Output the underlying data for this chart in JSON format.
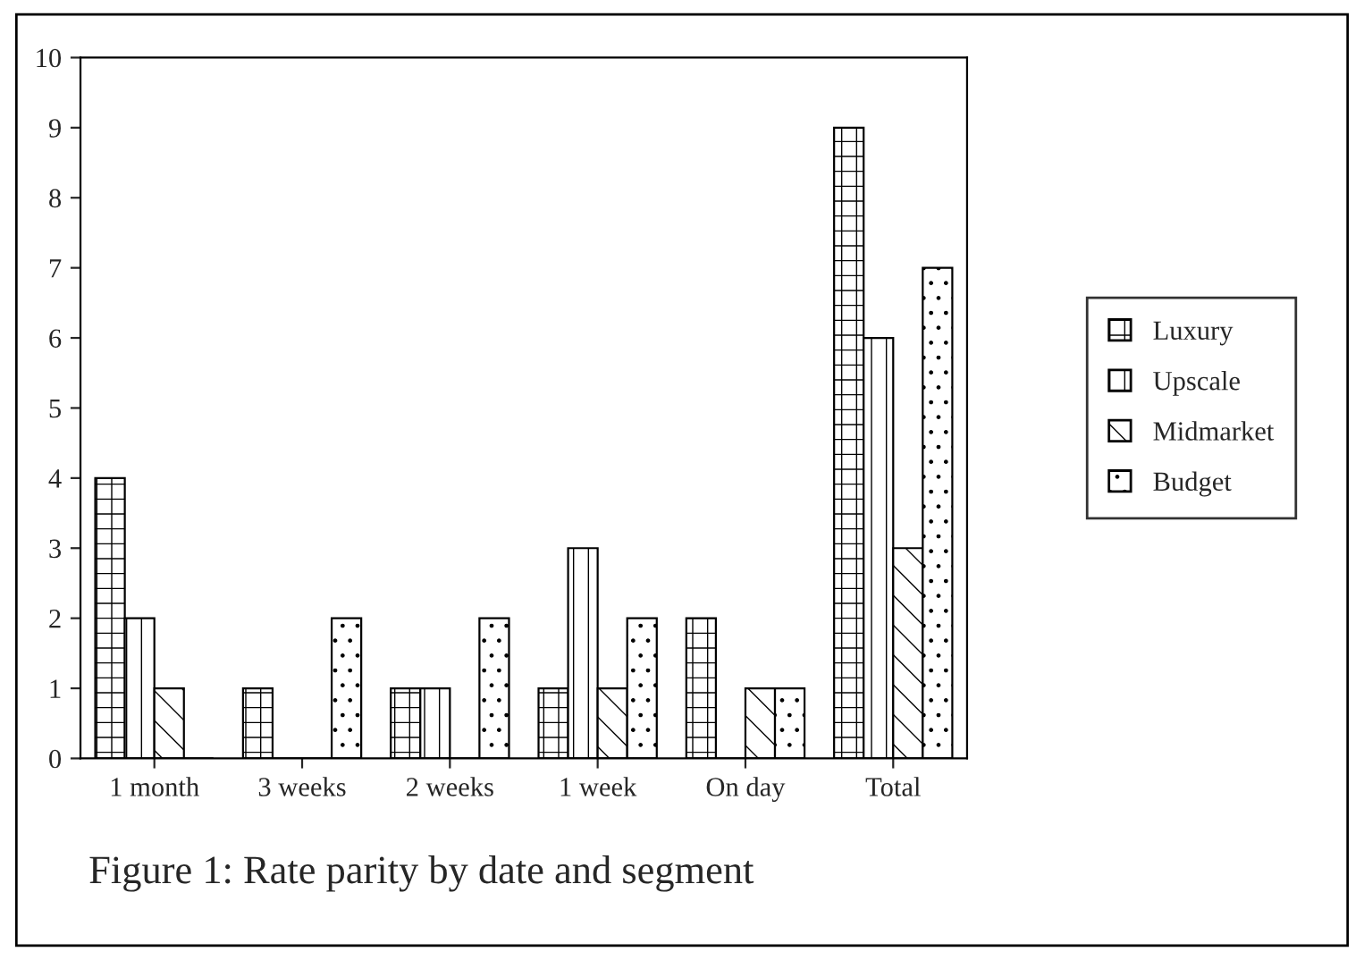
{
  "chart_data": {
    "type": "bar",
    "categories": [
      "1 month",
      "3 weeks",
      "2 weeks",
      "1 week",
      "On day",
      "Total"
    ],
    "series": [
      {
        "name": "Luxury",
        "color": "#000000",
        "values": [
          4,
          1,
          1,
          1,
          2,
          9
        ]
      },
      {
        "name": "Upscale",
        "color": "#000000",
        "values": [
          2,
          0,
          1,
          3,
          0,
          6
        ]
      },
      {
        "name": "Midmarket",
        "color": "#000000",
        "values": [
          1,
          0,
          0,
          1,
          1,
          3
        ]
      },
      {
        "name": "Budget",
        "color": "#000000",
        "values": [
          0,
          2,
          2,
          2,
          1,
          7
        ]
      }
    ],
    "ylim": [
      0,
      10
    ],
    "yticks": [
      0,
      1,
      2,
      3,
      4,
      5,
      6,
      7,
      8,
      9,
      10
    ],
    "grid": false,
    "legend": "right",
    "annotations": [
      "Figure 1: Rate parity by date and segment"
    ]
  }
}
